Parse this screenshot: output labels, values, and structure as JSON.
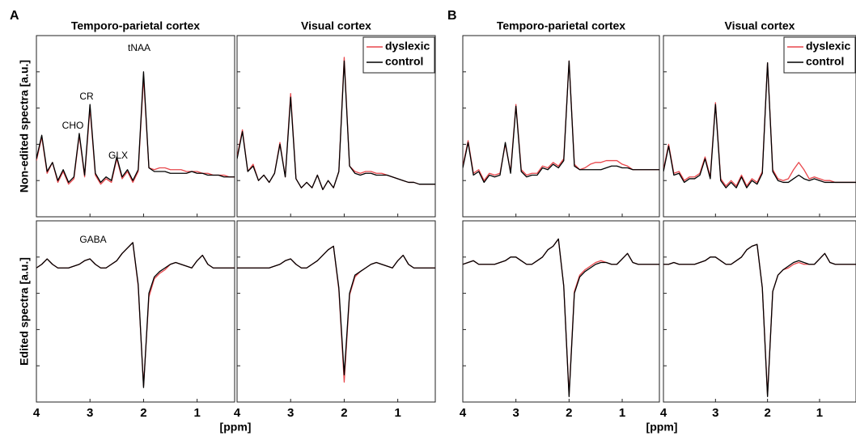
{
  "panels": [
    "A",
    "B"
  ],
  "chart_data": [
    {
      "type": "line",
      "title": "Temporo-parietal cortex",
      "ylabel": "Non-edited spectra [a.u.]",
      "annotations": [
        "tNAA",
        "CR",
        "CHO",
        "GLX"
      ],
      "x": [
        4.0,
        3.9,
        3.8,
        3.7,
        3.6,
        3.5,
        3.4,
        3.3,
        3.2,
        3.1,
        3.0,
        2.9,
        2.8,
        2.7,
        2.6,
        2.5,
        2.4,
        2.3,
        2.2,
        2.1,
        2.0,
        1.9,
        1.8,
        1.7,
        1.6,
        1.5,
        1.4,
        1.3,
        1.2,
        1.1,
        1.0,
        0.9,
        0.8,
        0.7,
        0.6,
        0.5,
        0.4,
        0.3
      ],
      "xlim": [
        4,
        0.3
      ],
      "ylim": [
        0,
        10
      ],
      "xticks": [
        4,
        3,
        2,
        1
      ],
      "xtick_labels": false,
      "series": [
        {
          "color": "#e8474c",
          "values": [
            3.1,
            4.4,
            2.4,
            3.0,
            1.9,
            2.5,
            1.8,
            2.1,
            4.5,
            2.2,
            6.0,
            2.3,
            1.8,
            2.1,
            1.9,
            3.2,
            2.1,
            2.5,
            1.9,
            2.5,
            7.7,
            2.7,
            2.6,
            2.7,
            2.7,
            2.6,
            2.6,
            2.6,
            2.5,
            2.5,
            2.5,
            2.4,
            2.4,
            2.3,
            2.3,
            2.3,
            2.2,
            2.2
          ]
        },
        {
          "color": "#000000",
          "values": [
            3.2,
            4.5,
            2.5,
            3.0,
            2.0,
            2.6,
            1.9,
            2.2,
            4.6,
            2.3,
            6.2,
            2.4,
            1.9,
            2.2,
            2.0,
            3.3,
            2.2,
            2.6,
            2.0,
            2.6,
            8.0,
            2.7,
            2.5,
            2.5,
            2.5,
            2.4,
            2.4,
            2.4,
            2.4,
            2.5,
            2.4,
            2.4,
            2.3,
            2.3,
            2.3,
            2.2,
            2.2,
            2.2
          ]
        }
      ]
    },
    {
      "type": "line",
      "title": "Visual cortex",
      "legend": "upper right",
      "x": [
        4.0,
        3.9,
        3.8,
        3.7,
        3.6,
        3.5,
        3.4,
        3.3,
        3.2,
        3.1,
        3.0,
        2.9,
        2.8,
        2.7,
        2.6,
        2.5,
        2.4,
        2.3,
        2.2,
        2.1,
        2.0,
        1.9,
        1.8,
        1.7,
        1.6,
        1.5,
        1.4,
        1.3,
        1.2,
        1.1,
        1.0,
        0.9,
        0.8,
        0.7,
        0.6,
        0.5,
        0.4,
        0.3
      ],
      "xlim": [
        4,
        0.3
      ],
      "ylim": [
        0,
        10
      ],
      "xticks": [
        4,
        3,
        2,
        1
      ],
      "xtick_labels": false,
      "series": [
        {
          "name": "dyslexic",
          "color": "#e8474c",
          "values": [
            3.3,
            4.8,
            2.5,
            2.9,
            2.0,
            2.3,
            1.9,
            2.4,
            4.1,
            2.2,
            6.8,
            2.1,
            1.6,
            1.9,
            1.6,
            2.3,
            1.5,
            2.0,
            1.6,
            2.5,
            8.8,
            2.8,
            2.5,
            2.4,
            2.5,
            2.5,
            2.4,
            2.4,
            2.3,
            2.2,
            2.1,
            2.0,
            1.9,
            1.9,
            1.8,
            1.8,
            1.8,
            1.8
          ]
        },
        {
          "name": "control",
          "color": "#000000",
          "values": [
            3.2,
            4.7,
            2.5,
            2.8,
            2.0,
            2.3,
            1.9,
            2.4,
            4.0,
            2.2,
            6.6,
            2.1,
            1.6,
            1.9,
            1.6,
            2.3,
            1.5,
            2.0,
            1.6,
            2.5,
            8.6,
            2.8,
            2.4,
            2.3,
            2.4,
            2.4,
            2.3,
            2.3,
            2.3,
            2.2,
            2.1,
            2.0,
            1.9,
            1.9,
            1.8,
            1.8,
            1.8,
            1.8
          ]
        }
      ]
    },
    {
      "type": "line",
      "ylabel": "Edited spectra [a.u.]",
      "annotations": [
        "GABA"
      ],
      "x": [
        4.0,
        3.9,
        3.8,
        3.7,
        3.6,
        3.5,
        3.4,
        3.3,
        3.2,
        3.1,
        3.0,
        2.9,
        2.8,
        2.7,
        2.6,
        2.5,
        2.4,
        2.3,
        2.2,
        2.1,
        2.0,
        1.9,
        1.8,
        1.7,
        1.6,
        1.5,
        1.4,
        1.3,
        1.2,
        1.1,
        1.0,
        0.9,
        0.8,
        0.7,
        0.6,
        0.5,
        0.4,
        0.3
      ],
      "xlim": [
        4,
        0.3
      ],
      "ylim": [
        0,
        10
      ],
      "xticks": [
        4,
        3,
        2,
        1
      ],
      "xtick_labels": true,
      "series": [
        {
          "color": "#e8474c",
          "values": [
            7.4,
            7.6,
            7.9,
            7.6,
            7.4,
            7.4,
            7.4,
            7.5,
            7.6,
            7.8,
            7.9,
            7.6,
            7.4,
            7.4,
            7.6,
            7.8,
            8.2,
            8.5,
            8.8,
            6.4,
            0.9,
            5.8,
            6.8,
            7.1,
            7.3,
            7.6,
            7.7,
            7.6,
            7.5,
            7.4,
            7.8,
            8.1,
            7.6,
            7.4,
            7.4,
            7.4,
            7.4,
            7.4
          ]
        },
        {
          "color": "#000000",
          "values": [
            7.4,
            7.6,
            7.9,
            7.6,
            7.4,
            7.4,
            7.4,
            7.5,
            7.6,
            7.8,
            7.9,
            7.6,
            7.4,
            7.4,
            7.6,
            7.8,
            8.2,
            8.5,
            8.8,
            6.5,
            0.8,
            6.0,
            6.9,
            7.2,
            7.4,
            7.6,
            7.7,
            7.6,
            7.5,
            7.4,
            7.8,
            8.1,
            7.6,
            7.4,
            7.4,
            7.4,
            7.4,
            7.4
          ]
        }
      ]
    },
    {
      "type": "line",
      "xlabel": "[ppm]",
      "x": [
        4.0,
        3.9,
        3.8,
        3.7,
        3.6,
        3.5,
        3.4,
        3.3,
        3.2,
        3.1,
        3.0,
        2.9,
        2.8,
        2.7,
        2.6,
        2.5,
        2.4,
        2.3,
        2.2,
        2.1,
        2.0,
        1.9,
        1.8,
        1.7,
        1.6,
        1.5,
        1.4,
        1.3,
        1.2,
        1.1,
        1.0,
        0.9,
        0.8,
        0.7,
        0.6,
        0.5,
        0.4,
        0.3
      ],
      "xlim": [
        4,
        0.3
      ],
      "ylim": [
        0,
        10
      ],
      "xticks": [
        4,
        3,
        2,
        1
      ],
      "xtick_labels": true,
      "series": [
        {
          "color": "#e8474c",
          "values": [
            7.4,
            7.4,
            7.4,
            7.4,
            7.4,
            7.4,
            7.4,
            7.5,
            7.6,
            7.8,
            7.9,
            7.6,
            7.4,
            7.4,
            7.6,
            7.8,
            8.1,
            8.4,
            8.6,
            6.2,
            1.1,
            5.9,
            6.9,
            7.2,
            7.4,
            7.6,
            7.7,
            7.6,
            7.5,
            7.4,
            7.8,
            8.1,
            7.6,
            7.4,
            7.4,
            7.4,
            7.4,
            7.4
          ]
        },
        {
          "color": "#000000",
          "values": [
            7.4,
            7.4,
            7.4,
            7.4,
            7.4,
            7.4,
            7.4,
            7.5,
            7.6,
            7.8,
            7.9,
            7.6,
            7.4,
            7.4,
            7.6,
            7.8,
            8.1,
            8.4,
            8.6,
            6.3,
            1.5,
            6.0,
            7.0,
            7.2,
            7.4,
            7.6,
            7.7,
            7.6,
            7.5,
            7.4,
            7.8,
            8.1,
            7.6,
            7.4,
            7.4,
            7.4,
            7.4,
            7.4
          ]
        }
      ]
    },
    {
      "type": "line",
      "title": "Temporo-parietal cortex",
      "x": [
        4.0,
        3.9,
        3.8,
        3.7,
        3.6,
        3.5,
        3.4,
        3.3,
        3.2,
        3.1,
        3.0,
        2.9,
        2.8,
        2.7,
        2.6,
        2.5,
        2.4,
        2.3,
        2.2,
        2.1,
        2.0,
        1.9,
        1.8,
        1.7,
        1.6,
        1.5,
        1.4,
        1.3,
        1.2,
        1.1,
        1.0,
        0.9,
        0.8,
        0.7,
        0.6,
        0.5,
        0.4,
        0.3
      ],
      "xlim": [
        4,
        0.3
      ],
      "ylim": [
        0,
        10
      ],
      "xticks": [
        4,
        3,
        2,
        1
      ],
      "xtick_labels": false,
      "series": [
        {
          "color": "#e8474c",
          "values": [
            2.8,
            4.2,
            2.4,
            2.6,
            2.0,
            2.4,
            2.3,
            2.4,
            4.0,
            2.5,
            6.2,
            2.6,
            2.3,
            2.4,
            2.4,
            2.8,
            2.7,
            3.0,
            2.8,
            3.2,
            8.6,
            2.9,
            2.6,
            2.7,
            2.9,
            3.0,
            3.0,
            3.1,
            3.1,
            3.1,
            2.9,
            2.8,
            2.6,
            2.6,
            2.6,
            2.6,
            2.6,
            2.6
          ]
        },
        {
          "color": "#000000",
          "values": [
            2.7,
            4.1,
            2.3,
            2.5,
            1.9,
            2.3,
            2.2,
            2.3,
            4.1,
            2.4,
            6.1,
            2.5,
            2.2,
            2.3,
            2.3,
            2.7,
            2.6,
            2.9,
            2.7,
            3.1,
            8.6,
            2.8,
            2.6,
            2.6,
            2.6,
            2.6,
            2.6,
            2.7,
            2.8,
            2.8,
            2.7,
            2.7,
            2.6,
            2.6,
            2.6,
            2.6,
            2.6,
            2.6
          ]
        }
      ]
    },
    {
      "type": "line",
      "title": "Visual cortex",
      "legend": "upper right",
      "x": [
        4.0,
        3.9,
        3.8,
        3.7,
        3.6,
        3.5,
        3.4,
        3.3,
        3.2,
        3.1,
        3.0,
        2.9,
        2.8,
        2.7,
        2.6,
        2.5,
        2.4,
        2.3,
        2.2,
        2.1,
        2.0,
        1.9,
        1.8,
        1.7,
        1.6,
        1.5,
        1.4,
        1.3,
        1.2,
        1.1,
        1.0,
        0.9,
        0.8,
        0.7,
        0.6,
        0.5,
        0.4,
        0.3
      ],
      "xlim": [
        4,
        0.3
      ],
      "ylim": [
        0,
        10
      ],
      "xticks": [
        4,
        3,
        2,
        1
      ],
      "xtick_labels": false,
      "series": [
        {
          "name": "dyslexic",
          "color": "#e8474c",
          "values": [
            2.6,
            4.0,
            2.4,
            2.5,
            2.0,
            2.2,
            2.2,
            2.4,
            3.3,
            2.2,
            6.3,
            2.1,
            1.7,
            2.0,
            1.7,
            2.3,
            1.7,
            2.1,
            1.9,
            2.5,
            8.5,
            2.6,
            2.1,
            2.0,
            2.1,
            2.6,
            3.0,
            2.6,
            2.1,
            2.2,
            2.1,
            2.0,
            2.0,
            1.9,
            1.9,
            1.9,
            1.9,
            1.9
          ]
        },
        {
          "name": "control",
          "color": "#000000",
          "values": [
            2.5,
            3.9,
            2.3,
            2.4,
            1.9,
            2.1,
            2.1,
            2.3,
            3.2,
            2.1,
            6.2,
            2.0,
            1.6,
            1.9,
            1.6,
            2.2,
            1.6,
            2.0,
            1.8,
            2.4,
            8.5,
            2.5,
            2.0,
            1.9,
            1.9,
            2.1,
            2.3,
            2.1,
            2.0,
            2.1,
            2.0,
            1.9,
            1.9,
            1.9,
            1.9,
            1.9,
            1.9,
            1.9
          ]
        }
      ]
    },
    {
      "type": "line",
      "x": [
        4.0,
        3.9,
        3.8,
        3.7,
        3.6,
        3.5,
        3.4,
        3.3,
        3.2,
        3.1,
        3.0,
        2.9,
        2.8,
        2.7,
        2.6,
        2.5,
        2.4,
        2.3,
        2.2,
        2.1,
        2.0,
        1.9,
        1.8,
        1.7,
        1.6,
        1.5,
        1.4,
        1.3,
        1.2,
        1.1,
        1.0,
        0.9,
        0.8,
        0.7,
        0.6,
        0.5,
        0.4,
        0.3
      ],
      "xlim": [
        4,
        0.3
      ],
      "ylim": [
        0,
        10
      ],
      "xticks": [
        4,
        3,
        2,
        1
      ],
      "xtick_labels": true,
      "series": [
        {
          "color": "#e8474c",
          "values": [
            7.6,
            7.7,
            7.8,
            7.6,
            7.6,
            7.6,
            7.6,
            7.7,
            7.8,
            8.0,
            8.0,
            7.8,
            7.6,
            7.6,
            7.8,
            8.0,
            8.4,
            8.6,
            9.0,
            6.4,
            0.4,
            6.1,
            7.0,
            7.3,
            7.5,
            7.7,
            7.8,
            7.7,
            7.6,
            7.6,
            7.9,
            8.2,
            7.7,
            7.6,
            7.6,
            7.6,
            7.6,
            7.6
          ]
        },
        {
          "color": "#000000",
          "values": [
            7.6,
            7.7,
            7.8,
            7.6,
            7.6,
            7.6,
            7.6,
            7.7,
            7.8,
            8.0,
            8.0,
            7.8,
            7.6,
            7.6,
            7.8,
            8.0,
            8.4,
            8.6,
            9.0,
            6.4,
            0.3,
            6.0,
            6.9,
            7.2,
            7.4,
            7.6,
            7.7,
            7.7,
            7.6,
            7.6,
            7.9,
            8.2,
            7.7,
            7.6,
            7.6,
            7.6,
            7.6,
            7.6
          ]
        }
      ]
    },
    {
      "type": "line",
      "xlabel": "[ppm]",
      "x": [
        4.0,
        3.9,
        3.8,
        3.7,
        3.6,
        3.5,
        3.4,
        3.3,
        3.2,
        3.1,
        3.0,
        2.9,
        2.8,
        2.7,
        2.6,
        2.5,
        2.4,
        2.3,
        2.2,
        2.1,
        2.0,
        1.9,
        1.8,
        1.7,
        1.6,
        1.5,
        1.4,
        1.3,
        1.2,
        1.1,
        1.0,
        0.9,
        0.8,
        0.7,
        0.6,
        0.5,
        0.4,
        0.3
      ],
      "xlim": [
        4,
        0.3
      ],
      "ylim": [
        0,
        10
      ],
      "xticks": [
        4,
        3,
        2,
        1
      ],
      "xtick_labels": true,
      "series": [
        {
          "color": "#e8474c",
          "values": [
            7.6,
            7.6,
            7.7,
            7.6,
            7.6,
            7.6,
            7.6,
            7.7,
            7.8,
            8.0,
            8.0,
            7.8,
            7.6,
            7.6,
            7.8,
            8.0,
            8.4,
            8.6,
            8.7,
            6.3,
            0.4,
            6.1,
            7.0,
            7.3,
            7.4,
            7.6,
            7.7,
            7.6,
            7.6,
            7.6,
            7.9,
            8.2,
            7.7,
            7.6,
            7.6,
            7.6,
            7.6,
            7.6
          ]
        },
        {
          "color": "#000000",
          "values": [
            7.6,
            7.6,
            7.7,
            7.6,
            7.6,
            7.6,
            7.6,
            7.7,
            7.8,
            8.0,
            8.0,
            7.8,
            7.6,
            7.6,
            7.8,
            8.0,
            8.4,
            8.6,
            8.7,
            6.3,
            0.3,
            6.1,
            7.0,
            7.3,
            7.5,
            7.7,
            7.8,
            7.7,
            7.6,
            7.6,
            7.9,
            8.2,
            7.7,
            7.6,
            7.6,
            7.6,
            7.6,
            7.6
          ]
        }
      ]
    }
  ]
}
